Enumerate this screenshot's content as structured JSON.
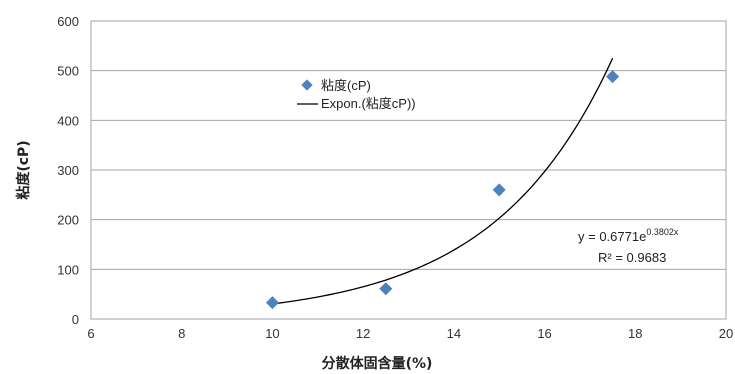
{
  "chart_data": {
    "type": "scatter",
    "xlabel": "分散体固含量(%)",
    "ylabel": "粘度(cP)",
    "xlim": [
      6,
      20
    ],
    "ylim": [
      0,
      600
    ],
    "x_ticks": [
      "6",
      "8",
      "10",
      "12",
      "14",
      "16",
      "18",
      "20"
    ],
    "y_ticks": [
      "0",
      "100",
      "200",
      "300",
      "400",
      "500",
      "600"
    ],
    "grid": "horizontal",
    "legend_position": "upper-center",
    "series": [
      {
        "name": "粘度(cP)",
        "marker": "diamond",
        "color": "#4f81bd",
        "points": [
          {
            "x": 10,
            "y": 33
          },
          {
            "x": 12.5,
            "y": 61
          },
          {
            "x": 15,
            "y": 260
          },
          {
            "x": 17.5,
            "y": 488
          }
        ]
      },
      {
        "name": "Expon.(粘度cP))",
        "kind": "trendline",
        "color": "#000000",
        "a": 0.6771,
        "b": 0.3802,
        "x_range": [
          10,
          17.5
        ]
      }
    ],
    "annotations": {
      "equation": "y = 0.6771e",
      "exponent": "0.3802x",
      "r2": "R² = 0.9683"
    }
  }
}
